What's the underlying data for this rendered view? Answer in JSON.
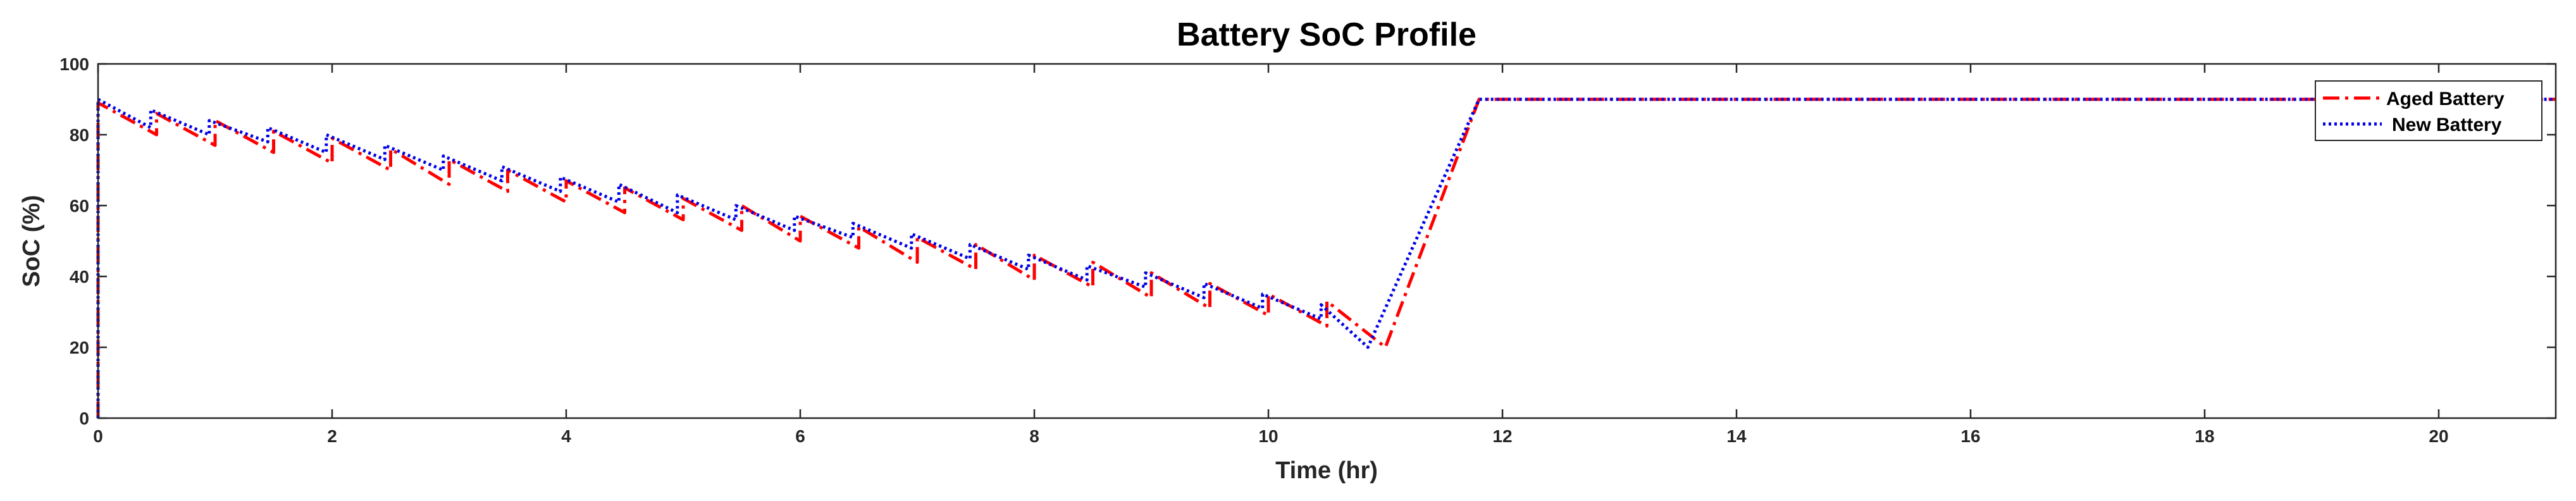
{
  "chart_data": {
    "type": "line",
    "title": "Battery SoC Profile",
    "xlabel": "Time (hr)",
    "ylabel": "SoC (%)",
    "xlim": [
      0,
      21
    ],
    "ylim": [
      0,
      100
    ],
    "xticks": [
      0,
      2,
      4,
      6,
      8,
      10,
      12,
      14,
      16,
      18,
      20
    ],
    "yticks": [
      0,
      20,
      40,
      60,
      80,
      100
    ],
    "legend_position": "top-right",
    "series": [
      {
        "name": "Aged Battery",
        "color": "#ff0000",
        "style": "dashdot",
        "points": [
          [
            0,
            0
          ],
          [
            0,
            89
          ],
          [
            0.5,
            80
          ],
          [
            0.5,
            86
          ],
          [
            1,
            77
          ],
          [
            1,
            84
          ],
          [
            1.5,
            75
          ],
          [
            1.5,
            81
          ],
          [
            2,
            72
          ],
          [
            2,
            79
          ],
          [
            2.5,
            70
          ],
          [
            2.5,
            76
          ],
          [
            3,
            66
          ],
          [
            3,
            73
          ],
          [
            3.5,
            64
          ],
          [
            3.5,
            70
          ],
          [
            4,
            61
          ],
          [
            4,
            67
          ],
          [
            4.5,
            58
          ],
          [
            4.5,
            65
          ],
          [
            5,
            56
          ],
          [
            5,
            62
          ],
          [
            5.5,
            53
          ],
          [
            5.5,
            60
          ],
          [
            6,
            50
          ],
          [
            6,
            57
          ],
          [
            6.5,
            48
          ],
          [
            6.5,
            54
          ],
          [
            7,
            44
          ],
          [
            7,
            51
          ],
          [
            7.5,
            42
          ],
          [
            7.5,
            49
          ],
          [
            8,
            39
          ],
          [
            8,
            46
          ],
          [
            8.5,
            37
          ],
          [
            8.5,
            44
          ],
          [
            9,
            34
          ],
          [
            9,
            41
          ],
          [
            9.5,
            31
          ],
          [
            9.5,
            38
          ],
          [
            10,
            29
          ],
          [
            10,
            35
          ],
          [
            10.5,
            26
          ],
          [
            10.5,
            33
          ],
          [
            11,
            20
          ],
          [
            11.8,
            90
          ],
          [
            21,
            90
          ]
        ]
      },
      {
        "name": "New Battery",
        "color": "#0000e6",
        "style": "dotted",
        "points": [
          [
            0,
            0
          ],
          [
            0,
            90
          ],
          [
            0.45,
            82
          ],
          [
            0.45,
            87
          ],
          [
            0.95,
            80
          ],
          [
            0.95,
            84
          ],
          [
            1.45,
            78
          ],
          [
            1.45,
            82
          ],
          [
            1.95,
            75
          ],
          [
            1.95,
            80
          ],
          [
            2.45,
            73
          ],
          [
            2.45,
            77
          ],
          [
            2.95,
            70
          ],
          [
            2.95,
            74
          ],
          [
            3.45,
            67
          ],
          [
            3.45,
            71
          ],
          [
            3.95,
            64
          ],
          [
            3.95,
            68
          ],
          [
            4.45,
            61
          ],
          [
            4.45,
            66
          ],
          [
            4.95,
            58
          ],
          [
            4.95,
            63
          ],
          [
            5.45,
            56
          ],
          [
            5.45,
            60
          ],
          [
            5.95,
            53
          ],
          [
            5.95,
            57
          ],
          [
            6.45,
            51
          ],
          [
            6.45,
            55
          ],
          [
            6.95,
            48
          ],
          [
            6.95,
            52
          ],
          [
            7.45,
            45
          ],
          [
            7.45,
            49
          ],
          [
            7.95,
            42
          ],
          [
            7.95,
            46
          ],
          [
            8.45,
            39
          ],
          [
            8.45,
            43
          ],
          [
            8.95,
            37
          ],
          [
            8.95,
            41
          ],
          [
            9.45,
            34
          ],
          [
            9.45,
            38
          ],
          [
            9.95,
            31
          ],
          [
            9.95,
            35
          ],
          [
            10.45,
            28
          ],
          [
            10.45,
            32
          ],
          [
            10.85,
            20
          ],
          [
            11.8,
            90
          ],
          [
            21,
            90
          ]
        ]
      }
    ]
  }
}
